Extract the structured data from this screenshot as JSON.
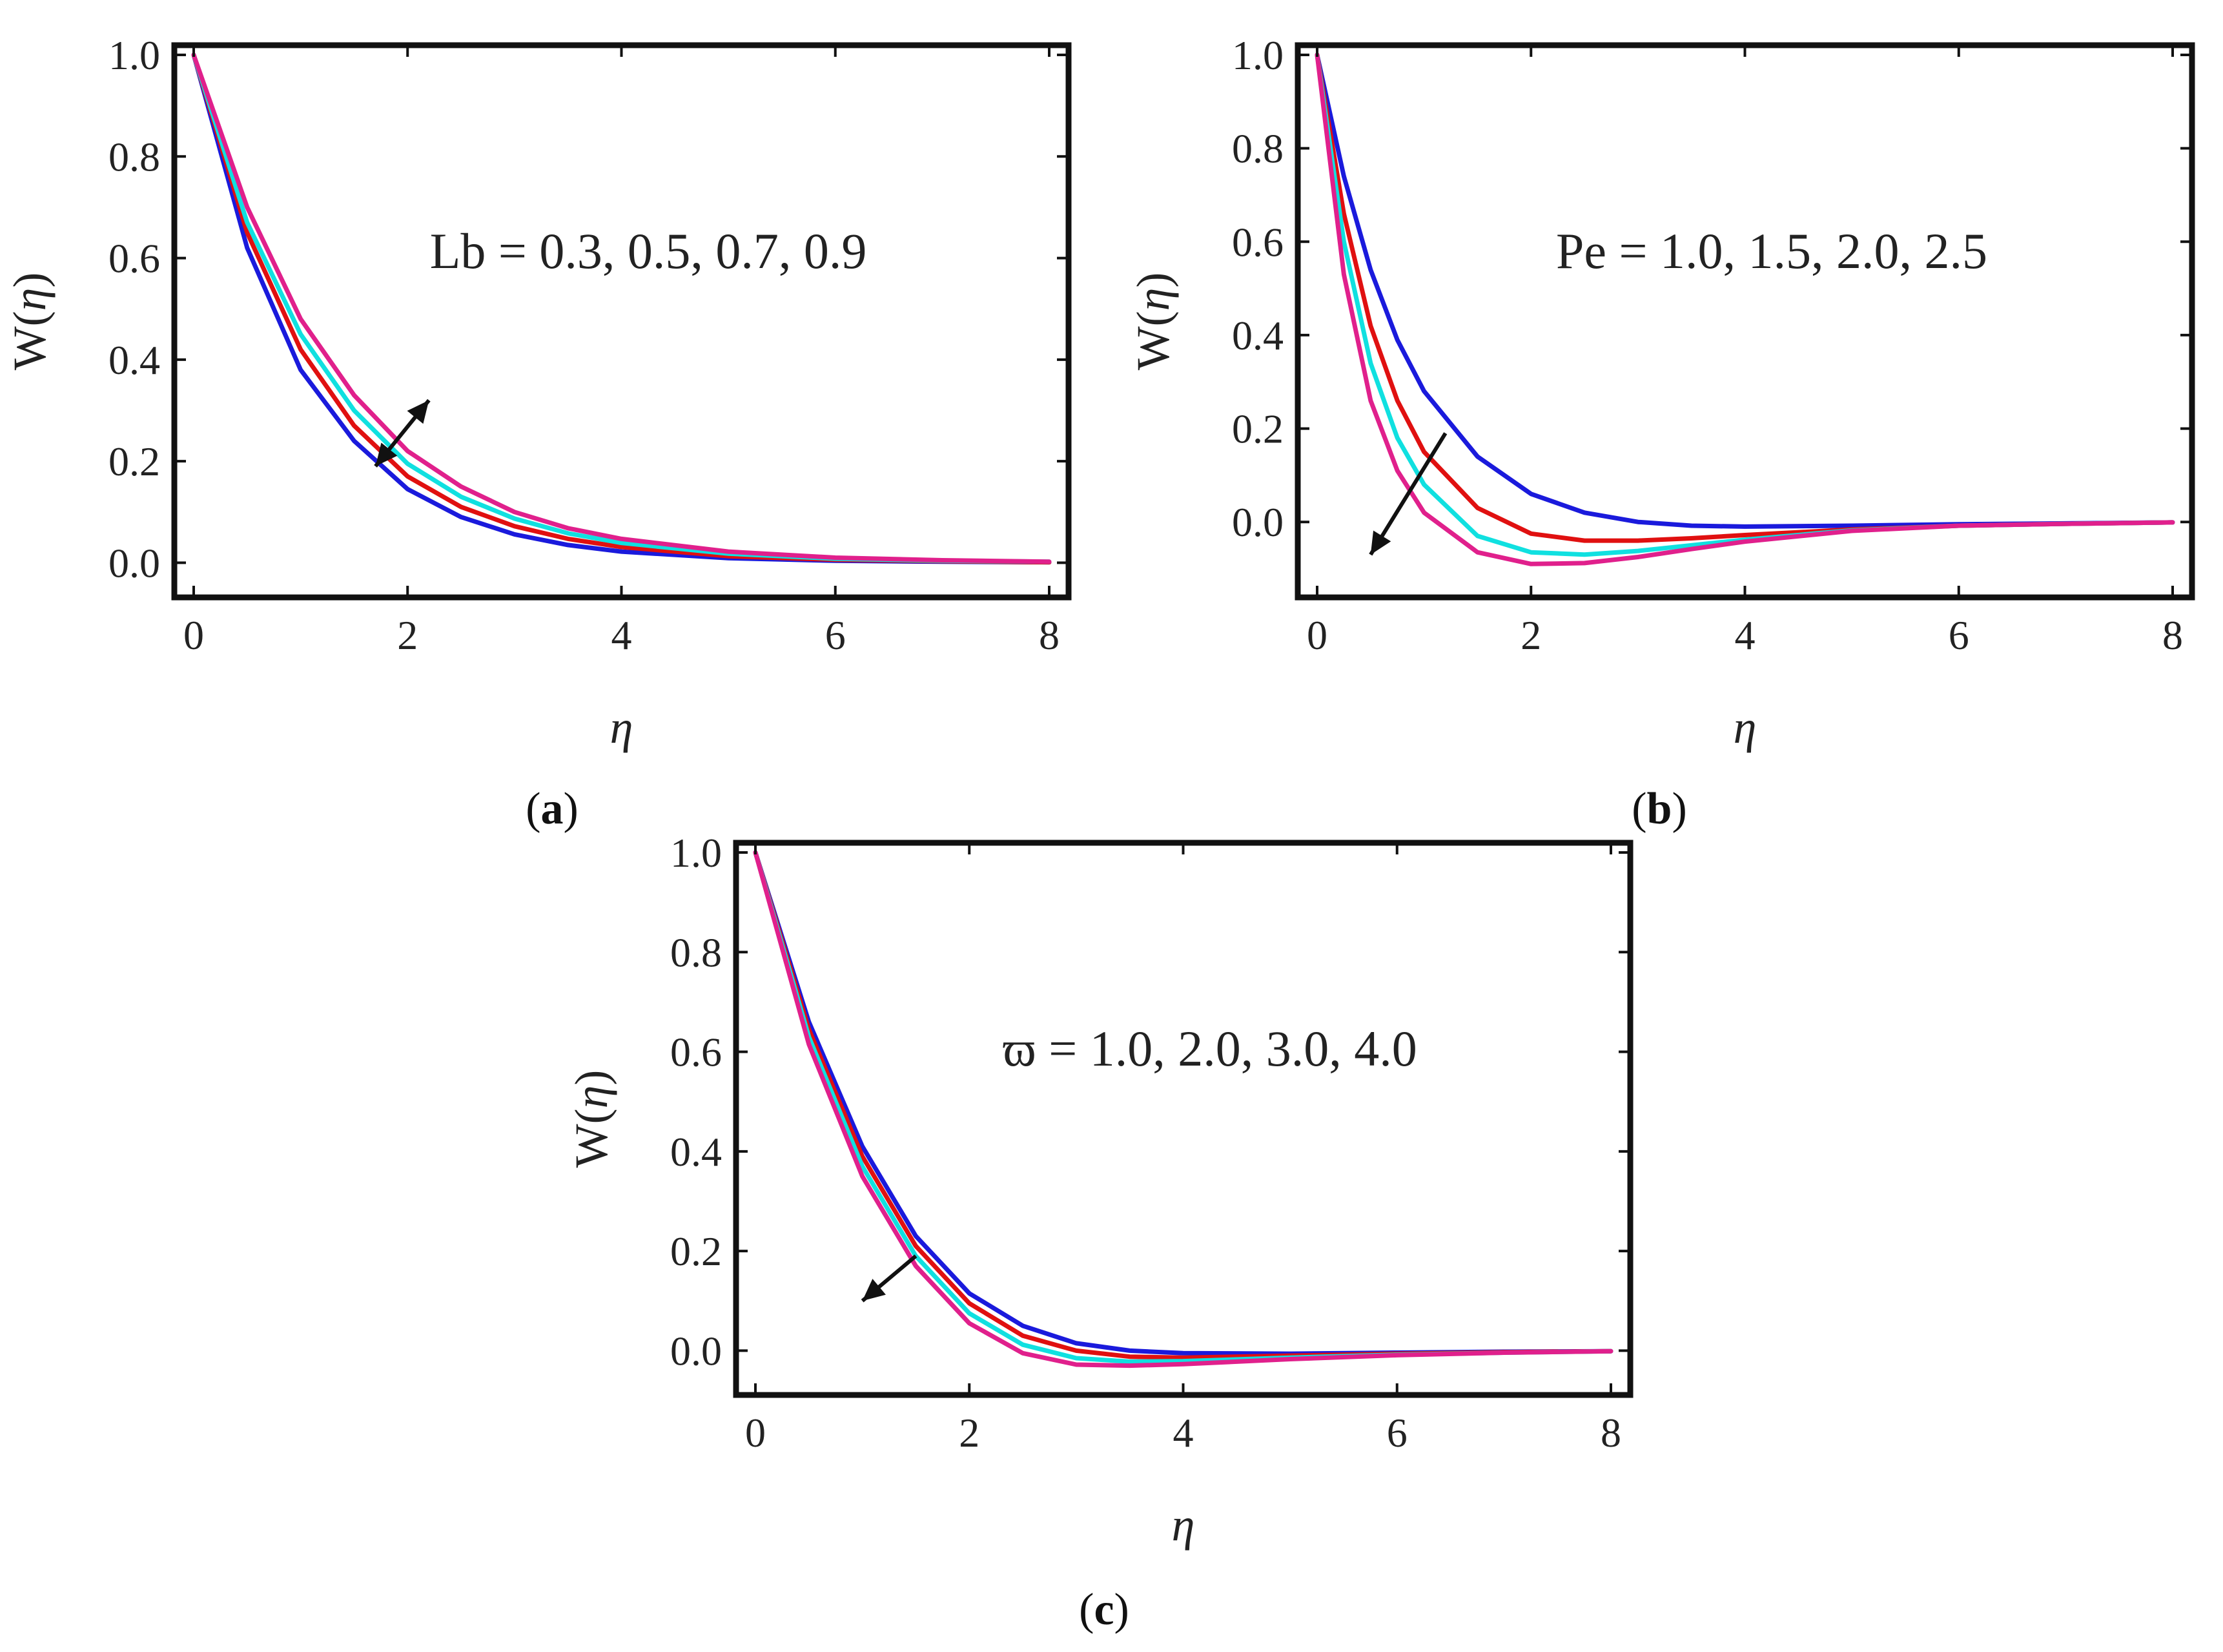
{
  "chart_data": [
    {
      "type": "line",
      "caption_letter": "a",
      "xlabel": "η",
      "ylabel_prefix": "W(",
      "ylabel_var": "η",
      "ylabel_suffix": ")",
      "xlim": [
        0,
        8
      ],
      "ylim": [
        -0.03,
        1.0
      ],
      "xticks": [
        "0",
        "2",
        "4",
        "6",
        "8"
      ],
      "yticks": [
        "0.0",
        "0.2",
        "0.4",
        "0.6",
        "0.8",
        "1.0"
      ],
      "annotation": "Lb = 0.3, 0.5, 0.7, 0.9",
      "arrow": {
        "from": [
          1.7,
          0.19
        ],
        "to": [
          2.2,
          0.32
        ],
        "bidirectional": true
      },
      "x": [
        0,
        0.5,
        1,
        1.5,
        2,
        2.5,
        3,
        3.5,
        4,
        5,
        6,
        7,
        8
      ],
      "series": [
        {
          "name": "Lb = 0.3",
          "color": "#1a1adc",
          "values": [
            1.0,
            0.62,
            0.38,
            0.24,
            0.145,
            0.09,
            0.056,
            0.035,
            0.022,
            0.009,
            0.004,
            0.002,
            0.001
          ]
        },
        {
          "name": "Lb = 0.5",
          "color": "#e01010",
          "values": [
            1.0,
            0.65,
            0.42,
            0.27,
            0.17,
            0.11,
            0.072,
            0.047,
            0.031,
            0.013,
            0.006,
            0.003,
            0.001
          ]
        },
        {
          "name": "Lb = 0.7",
          "color": "#10e0e0",
          "values": [
            1.0,
            0.67,
            0.45,
            0.3,
            0.195,
            0.13,
            0.087,
            0.058,
            0.039,
            0.018,
            0.008,
            0.004,
            0.002
          ]
        },
        {
          "name": "Lb = 0.9",
          "color": "#e0208c",
          "values": [
            1.0,
            0.7,
            0.48,
            0.33,
            0.22,
            0.15,
            0.1,
            0.068,
            0.047,
            0.022,
            0.01,
            0.005,
            0.002
          ]
        }
      ]
    },
    {
      "type": "line",
      "caption_letter": "b",
      "xlabel": "η",
      "ylabel_prefix": "W(",
      "ylabel_var": "η",
      "ylabel_suffix": ")",
      "xlim": [
        0,
        8
      ],
      "ylim": [
        -0.12,
        1.0
      ],
      "xticks": [
        "0",
        "2",
        "4",
        "6",
        "8"
      ],
      "yticks": [
        "0.0",
        "0.2",
        "0.4",
        "0.6",
        "0.8",
        "1.0"
      ],
      "annotation": "Pe = 1.0, 1.5, 2.0, 2.5",
      "arrow": {
        "from": [
          1.2,
          0.19
        ],
        "to": [
          0.5,
          -0.07
        ],
        "bidirectional": false
      },
      "x": [
        0,
        0.25,
        0.5,
        0.75,
        1,
        1.5,
        2,
        2.5,
        3,
        3.5,
        4,
        5,
        6,
        7,
        8
      ],
      "series": [
        {
          "name": "Pe = 1.0",
          "color": "#1a1adc",
          "values": [
            1.0,
            0.74,
            0.54,
            0.39,
            0.28,
            0.14,
            0.06,
            0.02,
            0.0,
            -0.008,
            -0.01,
            -0.008,
            -0.005,
            -0.003,
            -0.001
          ]
        },
        {
          "name": "Pe = 1.5",
          "color": "#e01010",
          "values": [
            1.0,
            0.66,
            0.42,
            0.26,
            0.15,
            0.03,
            -0.025,
            -0.04,
            -0.04,
            -0.035,
            -0.028,
            -0.016,
            -0.008,
            -0.004,
            -0.001
          ]
        },
        {
          "name": "Pe = 2.0",
          "color": "#10e0e0",
          "values": [
            1.0,
            0.6,
            0.34,
            0.18,
            0.08,
            -0.03,
            -0.065,
            -0.07,
            -0.062,
            -0.05,
            -0.038,
            -0.018,
            -0.008,
            -0.004,
            -0.001
          ]
        },
        {
          "name": "Pe = 2.5",
          "color": "#e0208c",
          "values": [
            1.0,
            0.53,
            0.26,
            0.11,
            0.02,
            -0.065,
            -0.09,
            -0.088,
            -0.075,
            -0.058,
            -0.042,
            -0.019,
            -0.008,
            -0.004,
            -0.001
          ]
        }
      ]
    },
    {
      "type": "line",
      "caption_letter": "c",
      "xlabel": "η",
      "ylabel_prefix": "W(",
      "ylabel_var": "η",
      "ylabel_suffix": ")",
      "xlim": [
        0,
        8
      ],
      "ylim": [
        -0.05,
        1.0
      ],
      "xticks": [
        "0",
        "2",
        "4",
        "6",
        "8"
      ],
      "yticks": [
        "0.0",
        "0.2",
        "0.4",
        "0.6",
        "0.8",
        "1.0"
      ],
      "annotation": "ϖ = 1.0, 2.0, 3.0, 4.0",
      "arrow": {
        "from": [
          1.5,
          0.19
        ],
        "to": [
          1.0,
          0.1
        ],
        "bidirectional": false
      },
      "x": [
        0,
        0.5,
        1,
        1.5,
        2,
        2.5,
        3,
        3.5,
        4,
        5,
        6,
        7,
        8
      ],
      "series": [
        {
          "name": "ϖ = 1.0",
          "color": "#1a1adc",
          "values": [
            1.0,
            0.66,
            0.41,
            0.23,
            0.115,
            0.05,
            0.015,
            0.0,
            -0.005,
            -0.006,
            -0.004,
            -0.002,
            -0.001
          ]
        },
        {
          "name": "ϖ = 2.0",
          "color": "#e01010",
          "values": [
            1.0,
            0.645,
            0.39,
            0.21,
            0.095,
            0.03,
            0.0,
            -0.012,
            -0.014,
            -0.01,
            -0.006,
            -0.003,
            -0.001
          ]
        },
        {
          "name": "ϖ = 3.0",
          "color": "#10e0e0",
          "values": [
            1.0,
            0.63,
            0.37,
            0.19,
            0.075,
            0.012,
            -0.015,
            -0.022,
            -0.021,
            -0.014,
            -0.008,
            -0.004,
            -0.001
          ]
        },
        {
          "name": "ϖ = 4.0",
          "color": "#e0208c",
          "values": [
            1.0,
            0.615,
            0.35,
            0.17,
            0.055,
            -0.005,
            -0.028,
            -0.03,
            -0.027,
            -0.017,
            -0.009,
            -0.004,
            -0.001
          ]
        }
      ]
    }
  ]
}
